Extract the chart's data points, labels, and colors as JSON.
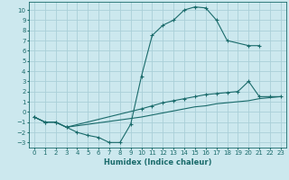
{
  "xlabel": "Humidex (Indice chaleur)",
  "bg_color": "#cce8ee",
  "grid_color": "#aacfd8",
  "line_color": "#1a6b6b",
  "xlim": [
    -0.5,
    23.5
  ],
  "ylim": [
    -3.5,
    10.8
  ],
  "xticks": [
    0,
    1,
    2,
    3,
    4,
    5,
    6,
    7,
    8,
    9,
    10,
    11,
    12,
    13,
    14,
    15,
    16,
    17,
    18,
    19,
    20,
    21,
    22,
    23
  ],
  "yticks": [
    -3,
    -2,
    -1,
    0,
    1,
    2,
    3,
    4,
    5,
    6,
    7,
    8,
    9,
    10
  ],
  "curve1_x": [
    0,
    1,
    2,
    3,
    4,
    5,
    6,
    7,
    8,
    9,
    10,
    11,
    12,
    13,
    14,
    15,
    16,
    17,
    18,
    20,
    21
  ],
  "curve1_y": [
    -0.5,
    -1,
    -1,
    -1.5,
    -2,
    -2.3,
    -2.5,
    -3,
    -3,
    -1.2,
    3.5,
    7.5,
    8.5,
    9.0,
    10.0,
    10.3,
    10.2,
    9.0,
    7.0,
    6.5,
    6.5
  ],
  "curve2_x": [
    0,
    1,
    2,
    3,
    10,
    11,
    12,
    13,
    14,
    15,
    16,
    17,
    18,
    19,
    20,
    21,
    22,
    23
  ],
  "curve2_y": [
    -0.5,
    -1,
    -1,
    -1.5,
    0.3,
    0.6,
    0.9,
    1.1,
    1.3,
    1.5,
    1.7,
    1.8,
    1.9,
    2.0,
    3.0,
    1.5,
    1.5,
    1.5
  ],
  "curve3_x": [
    0,
    1,
    2,
    3,
    10,
    11,
    12,
    13,
    14,
    15,
    16,
    17,
    18,
    19,
    20,
    21,
    22,
    23
  ],
  "curve3_y": [
    -0.5,
    -1,
    -1,
    -1.5,
    -0.5,
    -0.3,
    -0.1,
    0.1,
    0.3,
    0.5,
    0.6,
    0.8,
    0.9,
    1.0,
    1.1,
    1.3,
    1.4,
    1.5
  ]
}
